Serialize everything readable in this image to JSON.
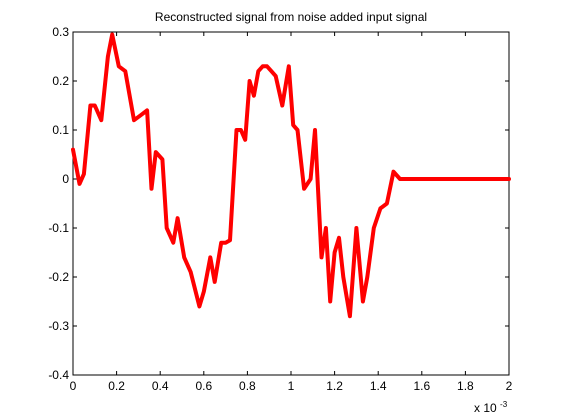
{
  "chart_data": {
    "type": "line",
    "title": "Reconstructed signal from noise added input signal",
    "xlabel": "",
    "ylabel": "",
    "x_multiplier": {
      "base": "x 10",
      "exponent": "-3"
    },
    "xlim": [
      0,
      2
    ],
    "ylim": [
      -0.4,
      0.3
    ],
    "x_ticks": [
      0,
      0.2,
      0.4,
      0.6,
      0.8,
      1,
      1.2,
      1.4,
      1.6,
      1.8,
      2
    ],
    "x_tick_labels": [
      "0",
      "0.2",
      "0.4",
      "0.6",
      "0.8",
      "1",
      "1.2",
      "1.4",
      "1.6",
      "1.8",
      "2"
    ],
    "y_ticks": [
      0.3,
      0.2,
      0.1,
      0,
      -0.1,
      -0.2,
      -0.3,
      -0.4
    ],
    "y_tick_labels": [
      "0.3",
      "0.2",
      "0.1",
      "0",
      "-0.1",
      "-0.2",
      "-0.3",
      "-0.4"
    ],
    "grid": false,
    "series": [
      {
        "color": "#ff0000",
        "x": [
          0,
          0.03,
          0.05,
          0.08,
          0.1,
          0.13,
          0.16,
          0.18,
          0.21,
          0.24,
          0.28,
          0.31,
          0.34,
          0.36,
          0.38,
          0.41,
          0.43,
          0.46,
          0.48,
          0.51,
          0.54,
          0.58,
          0.6,
          0.63,
          0.65,
          0.68,
          0.7,
          0.72,
          0.75,
          0.77,
          0.79,
          0.81,
          0.83,
          0.85,
          0.87,
          0.89,
          0.91,
          0.93,
          0.96,
          0.99,
          1.01,
          1.03,
          1.06,
          1.09,
          1.11,
          1.14,
          1.16,
          1.18,
          1.2,
          1.22,
          1.24,
          1.27,
          1.3,
          1.33,
          1.35,
          1.38,
          1.41,
          1.44,
          1.47,
          1.5,
          1.52,
          1.55,
          1.6,
          1.7,
          1.8,
          1.9,
          2.0
        ],
        "y": [
          0.06,
          -0.01,
          0.01,
          0.15,
          0.15,
          0.12,
          0.25,
          0.295,
          0.23,
          0.22,
          0.12,
          0.13,
          0.14,
          -0.02,
          0.055,
          0.04,
          -0.1,
          -0.13,
          -0.08,
          -0.16,
          -0.19,
          -0.26,
          -0.23,
          -0.16,
          -0.21,
          -0.13,
          -0.13,
          -0.125,
          0.1,
          0.1,
          0.08,
          0.2,
          0.17,
          0.22,
          0.23,
          0.23,
          0.22,
          0.21,
          0.15,
          0.23,
          0.11,
          0.1,
          -0.02,
          0.0,
          0.1,
          -0.16,
          -0.1,
          -0.25,
          -0.15,
          -0.12,
          -0.2,
          -0.28,
          -0.1,
          -0.25,
          -0.2,
          -0.1,
          -0.06,
          -0.05,
          0.015,
          0.0,
          0.0,
          0.0,
          0.0,
          0.0,
          0.0,
          0.0,
          0.0
        ]
      }
    ]
  }
}
